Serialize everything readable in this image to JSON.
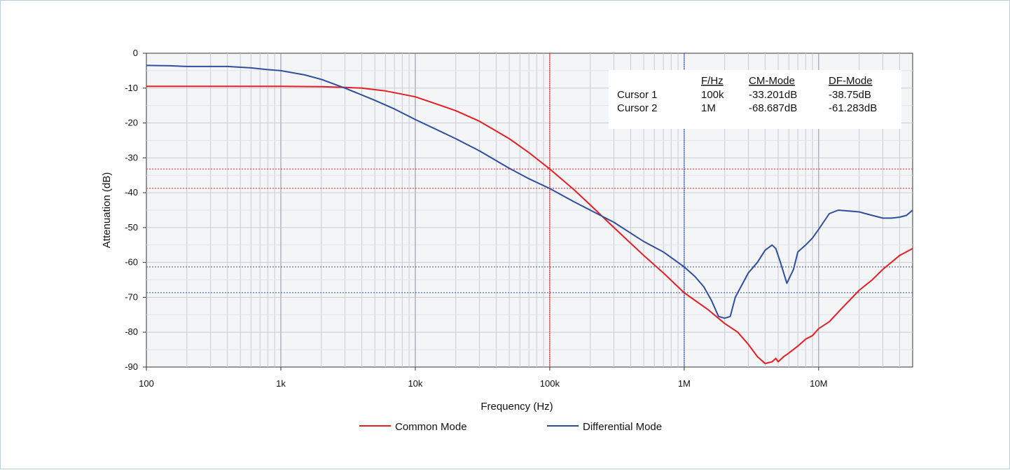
{
  "chart_data": {
    "type": "line",
    "title": "",
    "xlabel": "Frequency (Hz)",
    "ylabel": "Attenuation (dB)",
    "xscale": "log",
    "xlim": [
      100,
      50000000
    ],
    "ylim": [
      -90,
      0
    ],
    "grid": true,
    "legend_position": "bottom",
    "x_ticks": [
      {
        "value": 100,
        "label": "100"
      },
      {
        "value": 1000,
        "label": "1k"
      },
      {
        "value": 10000,
        "label": "10k"
      },
      {
        "value": 100000,
        "label": "100k"
      },
      {
        "value": 1000000,
        "label": "1M"
      },
      {
        "value": 10000000,
        "label": "10M"
      }
    ],
    "y_ticks": [
      {
        "value": 0,
        "label": "0"
      },
      {
        "value": -10,
        "label": "-10"
      },
      {
        "value": -20,
        "label": "-20"
      },
      {
        "value": -30,
        "label": "-30"
      },
      {
        "value": -40,
        "label": "-40"
      },
      {
        "value": -50,
        "label": "-50"
      },
      {
        "value": -60,
        "label": "-60"
      },
      {
        "value": -70,
        "label": "-70"
      },
      {
        "value": -80,
        "label": "-80"
      },
      {
        "value": -90,
        "label": "-90"
      }
    ],
    "series": [
      {
        "name": "Common Mode",
        "color": "#e41f26",
        "points": [
          [
            100,
            -9.5
          ],
          [
            300,
            -9.5
          ],
          [
            1000,
            -9.5
          ],
          [
            2000,
            -9.6
          ],
          [
            3000,
            -9.8
          ],
          [
            4000,
            -10.0
          ],
          [
            6000,
            -10.8
          ],
          [
            10000,
            -12.5
          ],
          [
            15000,
            -14.8
          ],
          [
            20000,
            -16.5
          ],
          [
            30000,
            -19.5
          ],
          [
            50000,
            -24.5
          ],
          [
            70000,
            -28.5
          ],
          [
            100000,
            -33.2
          ],
          [
            150000,
            -39.0
          ],
          [
            200000,
            -43.5
          ],
          [
            300000,
            -50.0
          ],
          [
            500000,
            -58.0
          ],
          [
            700000,
            -63.0
          ],
          [
            1000000,
            -68.7
          ],
          [
            1500000,
            -73.5
          ],
          [
            2000000,
            -77.5
          ],
          [
            2500000,
            -80.0
          ],
          [
            3000000,
            -83.5
          ],
          [
            3500000,
            -87.0
          ],
          [
            4000000,
            -89.0
          ],
          [
            4500000,
            -88.5
          ],
          [
            4800000,
            -87.5
          ],
          [
            5000000,
            -88.5
          ],
          [
            5500000,
            -87.0
          ],
          [
            6000000,
            -86.0
          ],
          [
            7000000,
            -84.0
          ],
          [
            8000000,
            -82.0
          ],
          [
            9000000,
            -81.0
          ],
          [
            10000000,
            -79.0
          ],
          [
            12000000,
            -77.0
          ],
          [
            15000000,
            -73.0
          ],
          [
            20000000,
            -68.0
          ],
          [
            25000000,
            -65.0
          ],
          [
            30000000,
            -62.0
          ],
          [
            40000000,
            -58.0
          ],
          [
            50000000,
            -56.0
          ]
        ]
      },
      {
        "name": "Differential Mode",
        "color": "#2f4f9e",
        "points": [
          [
            100,
            -3.5
          ],
          [
            150,
            -3.6
          ],
          [
            200,
            -3.8
          ],
          [
            400,
            -3.8
          ],
          [
            600,
            -4.2
          ],
          [
            800,
            -4.7
          ],
          [
            1000,
            -5.0
          ],
          [
            1500,
            -6.2
          ],
          [
            2000,
            -7.5
          ],
          [
            3000,
            -10.0
          ],
          [
            5000,
            -13.5
          ],
          [
            7000,
            -16.0
          ],
          [
            10000,
            -19.0
          ],
          [
            20000,
            -24.5
          ],
          [
            30000,
            -28.0
          ],
          [
            50000,
            -33.0
          ],
          [
            70000,
            -36.0
          ],
          [
            100000,
            -38.8
          ],
          [
            150000,
            -42.5
          ],
          [
            200000,
            -45.0
          ],
          [
            300000,
            -48.5
          ],
          [
            500000,
            -54.0
          ],
          [
            700000,
            -57.0
          ],
          [
            1000000,
            -61.3
          ],
          [
            1200000,
            -64.0
          ],
          [
            1400000,
            -67.0
          ],
          [
            1600000,
            -71.0
          ],
          [
            1800000,
            -75.5
          ],
          [
            2000000,
            -76.0
          ],
          [
            2200000,
            -75.5
          ],
          [
            2400000,
            -70.0
          ],
          [
            3000000,
            -63.0
          ],
          [
            3500000,
            -60.0
          ],
          [
            4000000,
            -56.5
          ],
          [
            4500000,
            -55.0
          ],
          [
            4800000,
            -56.0
          ],
          [
            5200000,
            -60.0
          ],
          [
            5800000,
            -66.0
          ],
          [
            6500000,
            -62.0
          ],
          [
            7000000,
            -57.0
          ],
          [
            8000000,
            -55.0
          ],
          [
            9000000,
            -53.0
          ],
          [
            10000000,
            -50.5
          ],
          [
            12000000,
            -46.0
          ],
          [
            14000000,
            -45.0
          ],
          [
            20000000,
            -45.5
          ],
          [
            25000000,
            -46.5
          ],
          [
            30000000,
            -47.3
          ],
          [
            35000000,
            -47.3
          ],
          [
            40000000,
            -47.0
          ],
          [
            45000000,
            -46.5
          ],
          [
            50000000,
            -45.0
          ]
        ]
      }
    ],
    "cursors": [
      {
        "label": "Cursor 1",
        "freq": "100k",
        "x": 100000,
        "cm": "-33.201dB",
        "df": "-38.75dB",
        "cm_value": -33.201,
        "df_value": -38.75,
        "color": "#e41f26"
      },
      {
        "label": "Cursor 2",
        "freq": "1M",
        "x": 1000000,
        "cm": "-68.687dB",
        "df": "-61.283dB",
        "cm_value": -68.687,
        "df_value": -61.283,
        "color": "#2f4f9e"
      }
    ],
    "cursor_table_headers": {
      "freq": "F/Hz",
      "cm": "CM-Mode",
      "df": "DF-Mode"
    }
  }
}
